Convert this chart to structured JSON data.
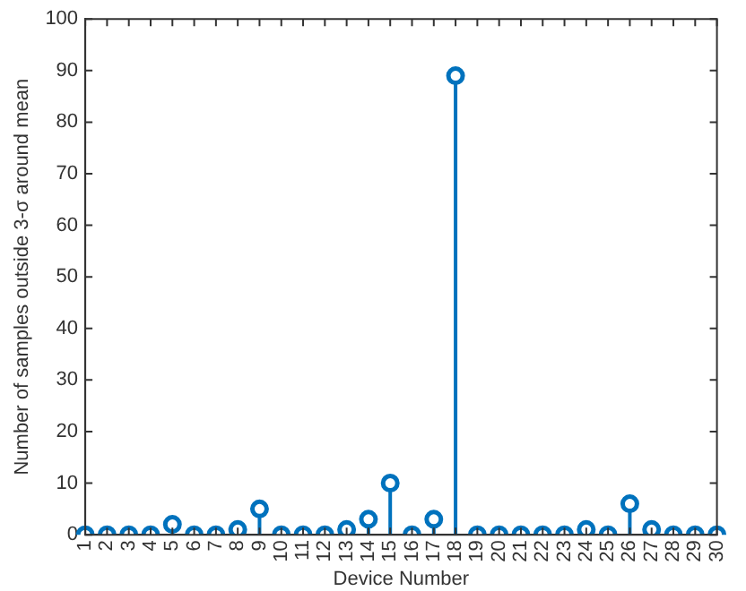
{
  "chart_data": {
    "type": "lollipop",
    "xlabel": "Device Number",
    "ylabel": "Number of samples outside 3-σ around mean",
    "categories": [
      "1",
      "2",
      "3",
      "4",
      "5",
      "6",
      "7",
      "8",
      "9",
      "10",
      "11",
      "12",
      "13",
      "14",
      "15",
      "16",
      "17",
      "18",
      "19",
      "20",
      "21",
      "22",
      "23",
      "24",
      "25",
      "26",
      "27",
      "28",
      "29",
      "30"
    ],
    "values": [
      0,
      0,
      0,
      0,
      2,
      0,
      0,
      1,
      5,
      0,
      0,
      0,
      1,
      3,
      10,
      0,
      3,
      89,
      0,
      0,
      0,
      0,
      0,
      1,
      0,
      6,
      1,
      0,
      0,
      0
    ],
    "color": "#0072bd",
    "marker": "circle",
    "ylim": [
      0,
      100
    ],
    "yticks": [
      0,
      10,
      20,
      30,
      40,
      50,
      60,
      70,
      80,
      90,
      100
    ],
    "grid": false,
    "legend": false
  }
}
